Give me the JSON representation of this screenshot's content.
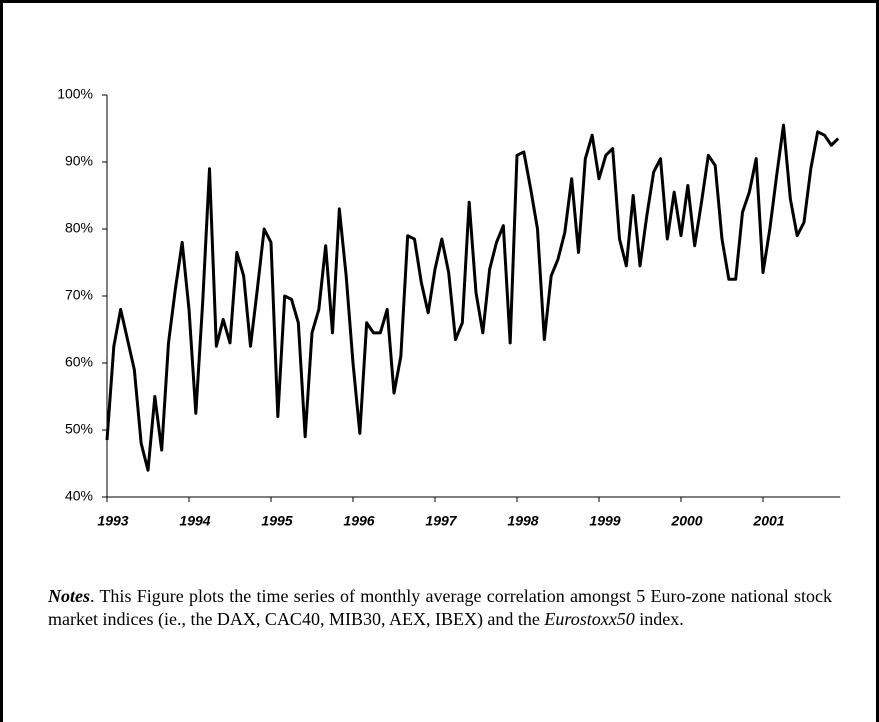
{
  "chart_data": {
    "type": "line",
    "color": "#000000",
    "categories": [
      "1993",
      null,
      null,
      null,
      null,
      null,
      null,
      null,
      null,
      null,
      null,
      null,
      "1994",
      null,
      null,
      null,
      null,
      null,
      null,
      null,
      null,
      null,
      null,
      null,
      "1995",
      null,
      null,
      null,
      null,
      null,
      null,
      null,
      null,
      null,
      null,
      null,
      "1996",
      null,
      null,
      null,
      null,
      null,
      null,
      null,
      null,
      null,
      null,
      null,
      "1997",
      null,
      null,
      null,
      null,
      null,
      null,
      null,
      null,
      null,
      null,
      null,
      "1998",
      null,
      null,
      null,
      null,
      null,
      null,
      null,
      null,
      null,
      null,
      null,
      "1999",
      null,
      null,
      null,
      null,
      null,
      null,
      null,
      null,
      null,
      null,
      null,
      "2000",
      null,
      null,
      null,
      null,
      null,
      null,
      null,
      null,
      null,
      null,
      null,
      "2001",
      null,
      null,
      null,
      null,
      null,
      null,
      null,
      null,
      null,
      null,
      null
    ],
    "values": [
      48.5,
      62.5,
      68,
      63.5,
      59,
      48,
      44,
      55,
      47,
      63,
      71,
      78,
      68,
      52.5,
      69,
      89,
      62.5,
      66.5,
      63,
      76.5,
      73,
      62.5,
      71,
      80,
      78,
      52,
      70,
      69.5,
      66,
      49,
      64.5,
      68,
      77.5,
      64.5,
      83,
      73,
      60,
      49.5,
      66,
      64.5,
      64.5,
      68,
      55.5,
      61,
      79,
      78.5,
      72,
      67.5,
      74,
      78.5,
      73.5,
      63.5,
      66,
      84,
      70.5,
      64.5,
      74,
      78,
      80.5,
      63,
      91,
      91.5,
      86,
      80,
      63.5,
      73,
      75.5,
      79.5,
      87.5,
      76.5,
      90.5,
      94,
      87.5,
      91,
      92,
      78.5,
      74.5,
      85,
      74.5,
      82,
      88.5,
      90.5,
      78.5,
      85.5,
      79,
      86.5,
      77.5,
      84,
      91,
      89.5,
      78.5,
      72.5,
      72.5,
      82.5,
      85.5,
      90.5,
      73.5,
      80,
      88,
      95.5,
      84.5,
      79,
      81,
      89,
      94.5,
      94,
      92.5,
      93.5
    ],
    "ylim": [
      40,
      100
    ],
    "yticks": [
      {
        "value": 40,
        "label": "40%"
      },
      {
        "value": 50,
        "label": "50%"
      },
      {
        "value": 60,
        "label": "60%"
      },
      {
        "value": 70,
        "label": "70%"
      },
      {
        "value": 80,
        "label": "80%"
      },
      {
        "value": 90,
        "label": "90%"
      },
      {
        "value": 100,
        "label": "100%"
      }
    ]
  },
  "notes": {
    "label": "Notes",
    "text_1": ". This Figure plots the time series of monthly average correlation amongst 5 Euro-zone national stock market indices (ie., the DAX, CAC40, MIB30, AEX, IBEX) and the ",
    "italic": "Eurostoxx50",
    "text_2": " index."
  }
}
